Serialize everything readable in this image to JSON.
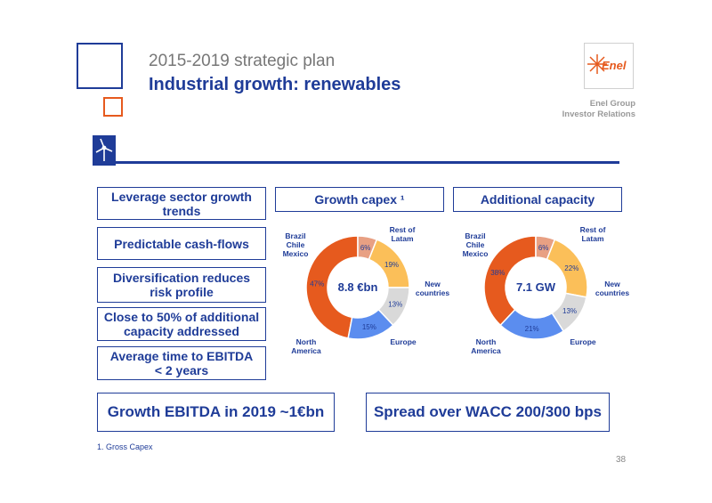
{
  "header": {
    "title_line1": "2015-2019 strategic plan",
    "title_line2": "Industrial growth: renewables",
    "logo_text": "Enel",
    "ir_line1": "Enel Group",
    "ir_line2": "Investor Relations"
  },
  "icons": {
    "section_icon": "wind-turbine-icon",
    "logo_icon": "enel-logo-icon"
  },
  "colors": {
    "brand_blue": "#1f3c98",
    "orange": "#e65a1e",
    "light_orange": "#e8a083",
    "yellow": "#fbbf59",
    "grey": "#d9d9d9",
    "blue": "#5b8def"
  },
  "left_boxes": [
    {
      "line1": "Leverage sector growth",
      "line2": "trends"
    },
    {
      "line1": "Predictable cash-flows",
      "line2": ""
    },
    {
      "line1": "Diversification reduces",
      "line2": "risk profile"
    },
    {
      "line1": "Close to 50% of additional",
      "line2": "capacity addressed"
    },
    {
      "line1": "Average time to EBITDA",
      "line2": "< 2 years"
    }
  ],
  "bottom_boxes": {
    "left": "Growth EBITDA in 2019 ~1€bn",
    "right": "Spread over WACC 200/300 bps"
  },
  "footnote": "1.    Gross Capex",
  "page_number": "38",
  "chart_data": [
    {
      "type": "pie",
      "title": "Growth capex ¹",
      "center_label": "8.8 €bn",
      "categories": [
        "Brazil Chile Mexico",
        "Rest of Latam",
        "New countries",
        "Europe",
        "North America"
      ],
      "values": [
        47,
        6,
        19,
        13,
        15
      ],
      "value_labels": [
        "47%",
        "6%",
        "19%",
        "13%",
        "15%"
      ],
      "colors": [
        "#e65a1e",
        "#e8a083",
        "#fbbf59",
        "#d9d9d9",
        "#5b8def"
      ]
    },
    {
      "type": "pie",
      "title": "Additional capacity",
      "center_label": "7.1 GW",
      "categories": [
        "Brazil Chile Mexico",
        "Rest of Latam",
        "New countries",
        "Europe",
        "North America"
      ],
      "values": [
        38,
        6,
        22,
        13,
        21
      ],
      "value_labels": [
        "38%",
        "6%",
        "22%",
        "13%",
        "21%"
      ],
      "colors": [
        "#e65a1e",
        "#e8a083",
        "#fbbf59",
        "#d9d9d9",
        "#5b8def"
      ]
    }
  ],
  "chart_category_labels": {
    "bcm": [
      "Brazil",
      "Chile",
      "Mexico"
    ],
    "rest": [
      "Rest of",
      "Latam"
    ],
    "newc": [
      "New",
      "countries"
    ],
    "europe": [
      "Europe"
    ],
    "na": [
      "North",
      "America"
    ]
  }
}
